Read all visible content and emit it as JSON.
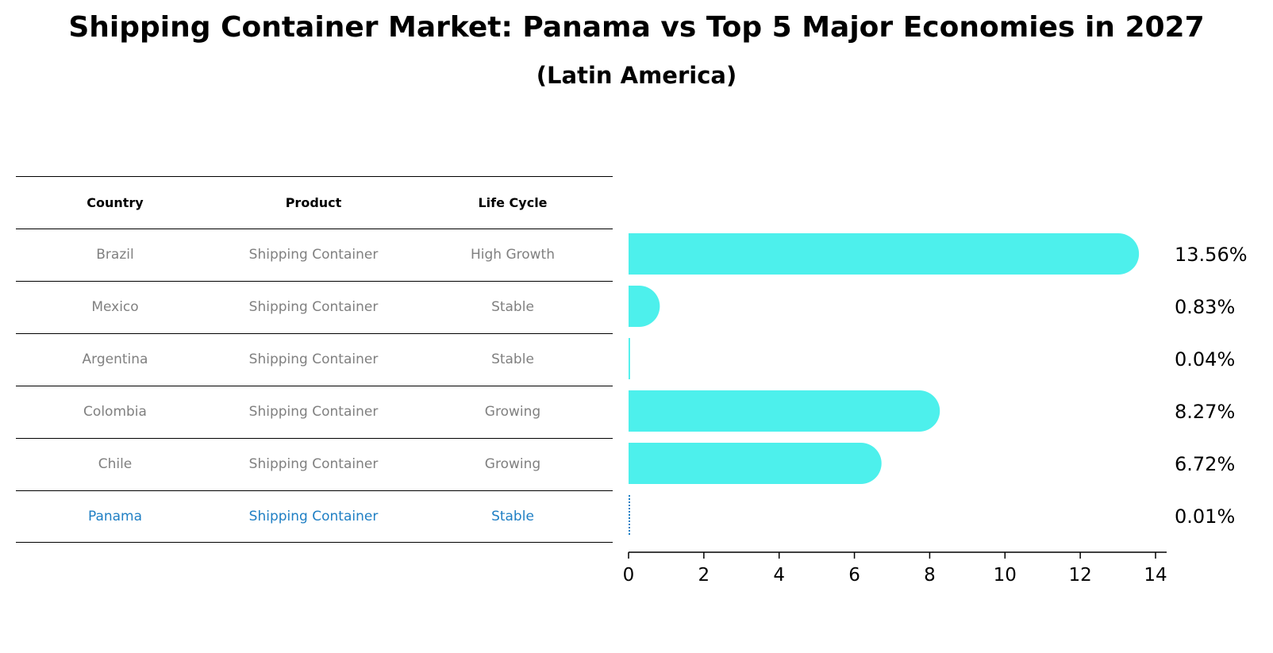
{
  "title": "Shipping Container Market: Panama vs Top 5 Major Economies in 2027",
  "subtitle": "(Latin America)",
  "table": {
    "headers": [
      "Country",
      "Product",
      "Life Cycle"
    ],
    "rows": [
      [
        "Brazil",
        "Shipping Container",
        "High Growth"
      ],
      [
        "Mexico",
        "Shipping Container",
        "Stable"
      ],
      [
        "Argentina",
        "Shipping Container",
        "Stable"
      ],
      [
        "Colombia",
        "Shipping Container",
        "Growing"
      ],
      [
        "Chile",
        "Shipping Container",
        "Growing"
      ],
      [
        "Panama",
        "Shipping Container",
        "Stable"
      ]
    ],
    "highlight_row": "Panama"
  },
  "chart_data": {
    "type": "bar",
    "orientation": "horizontal",
    "categories": [
      "Brazil",
      "Mexico",
      "Argentina",
      "Colombia",
      "Chile",
      "Panama"
    ],
    "values": [
      13.56,
      0.83,
      0.04,
      8.27,
      6.72,
      0.01
    ],
    "value_labels": [
      "13.56%",
      "0.83%",
      "0.04%",
      "8.27%",
      "6.72%",
      "0.01%"
    ],
    "xlim": [
      0,
      14
    ],
    "xticks": [
      "0",
      "2",
      "4",
      "6",
      "8",
      "10",
      "12",
      "14"
    ],
    "grid": false,
    "bar_color": "#4df0ec",
    "highlight_color": "#1f7fc4"
  }
}
